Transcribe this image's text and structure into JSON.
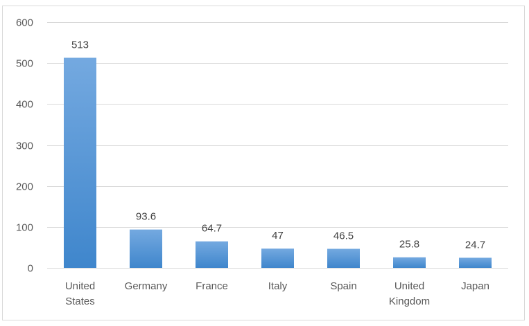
{
  "chart_data": {
    "type": "bar",
    "categories": [
      [
        "United",
        "States"
      ],
      [
        "Germany"
      ],
      [
        "France"
      ],
      [
        "Italy"
      ],
      [
        "Spain"
      ],
      [
        "United",
        "Kingdom"
      ],
      [
        "Japan"
      ]
    ],
    "values": [
      513,
      93.6,
      64.7,
      47,
      46.5,
      25.8,
      24.7
    ],
    "data_labels": [
      "513",
      "93.6",
      "64.7",
      "47",
      "46.5",
      "25.8",
      "24.7"
    ],
    "yticks": [
      0,
      100,
      200,
      300,
      400,
      500,
      600
    ],
    "ylim": [
      0,
      600
    ],
    "grid": true,
    "legend": "none",
    "bar_color_top": "#74a9e0",
    "bar_color_bottom": "#3f86cc"
  }
}
